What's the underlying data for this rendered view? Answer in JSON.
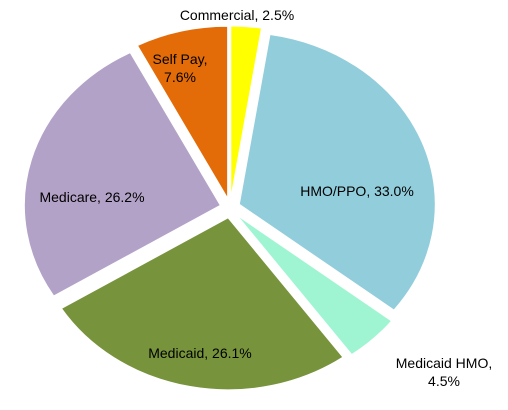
{
  "chart_data": {
    "type": "pie",
    "labels": [
      [
        "Commercial, 2.5%"
      ],
      [
        "HMO/PPO, 33.0%"
      ],
      [
        "Medicaid HMO,",
        "4.5%"
      ],
      [
        "Medicaid, 26.1%"
      ],
      [
        "Medicare, 26.2%"
      ],
      [
        "Self Pay,",
        "7.6%"
      ]
    ],
    "values": [
      2.5,
      33.0,
      4.5,
      26.1,
      26.2,
      7.6
    ],
    "colors": [
      "#ffff00",
      "#92cddc",
      "#9ff5d2",
      "#77933c",
      "#b3a2c7",
      "#e36c09"
    ]
  }
}
